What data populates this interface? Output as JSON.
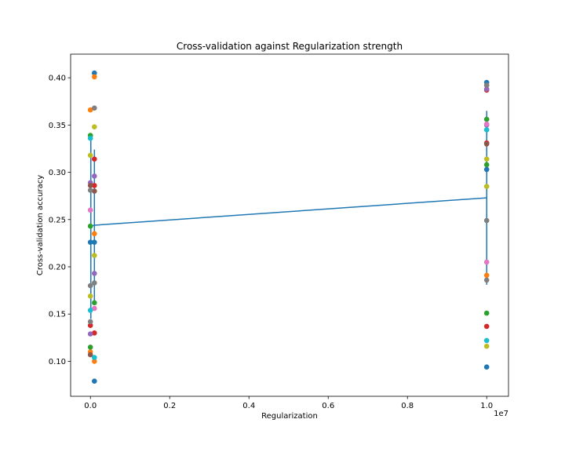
{
  "chart_data": {
    "type": "scatter",
    "title": "Cross-validation against Regularization strength",
    "xlabel": "Regularization",
    "ylabel": "Cross-validation accuracy",
    "x_offset_text": "1e7",
    "xlim": [
      -0.05,
      1.055
    ],
    "ylim": [
      0.063,
      0.425
    ],
    "xticks": [
      0.0,
      0.2,
      0.4,
      0.6,
      0.8,
      1.0
    ],
    "xtick_labels": [
      "0.0",
      "0.2",
      "0.4",
      "0.6",
      "0.8",
      "1.0"
    ],
    "yticks": [
      0.1,
      0.15,
      0.2,
      0.25,
      0.3,
      0.35,
      0.4
    ],
    "ytick_labels": [
      "0.10",
      "0.15",
      "0.20",
      "0.25",
      "0.30",
      "0.35",
      "0.40"
    ],
    "grid": false,
    "mean_line": {
      "color": "#1f77b4",
      "x": [
        0.001,
        0.01,
        1.0
      ],
      "y": [
        0.243,
        0.244,
        0.273
      ],
      "error": [
        0.098,
        0.08,
        0.092
      ]
    },
    "series": [
      {
        "color": "#1f77b4",
        "points": [
          [
            0.0,
            0.226
          ],
          [
            0.01,
            0.405
          ],
          [
            0.01,
            0.079
          ],
          [
            0.01,
            0.226
          ],
          [
            1.0,
            0.395
          ],
          [
            1.0,
            0.303
          ],
          [
            1.0,
            0.094
          ]
        ]
      },
      {
        "color": "#ff7f0e",
        "points": [
          [
            0.0,
            0.366
          ],
          [
            0.0,
            0.11
          ],
          [
            0.01,
            0.401
          ],
          [
            0.01,
            0.235
          ],
          [
            0.01,
            0.1
          ],
          [
            1.0,
            0.392
          ],
          [
            1.0,
            0.191
          ]
        ]
      },
      {
        "color": "#2ca02c",
        "points": [
          [
            0.0,
            0.339
          ],
          [
            0.0,
            0.243
          ],
          [
            0.0,
            0.115
          ],
          [
            0.01,
            0.162
          ],
          [
            1.0,
            0.356
          ],
          [
            1.0,
            0.308
          ],
          [
            1.0,
            0.151
          ]
        ]
      },
      {
        "color": "#d62728",
        "points": [
          [
            0.0,
            0.138
          ],
          [
            0.01,
            0.314
          ],
          [
            0.01,
            0.286
          ],
          [
            0.01,
            0.13
          ],
          [
            1.0,
            0.387
          ],
          [
            1.0,
            0.331
          ],
          [
            1.0,
            0.137
          ]
        ]
      },
      {
        "color": "#9467bd",
        "points": [
          [
            0.0,
            0.129
          ],
          [
            0.0,
            0.289
          ],
          [
            0.01,
            0.296
          ],
          [
            0.01,
            0.193
          ],
          [
            1.0,
            0.388
          ],
          [
            1.0,
            0.35
          ]
        ]
      },
      {
        "color": "#8c564b",
        "points": [
          [
            0.0,
            0.286
          ],
          [
            0.0,
            0.107
          ],
          [
            0.01,
            0.28
          ],
          [
            1.0,
            0.33
          ]
        ]
      },
      {
        "color": "#e377c2",
        "points": [
          [
            0.0,
            0.26
          ],
          [
            0.01,
            0.156
          ],
          [
            1.0,
            0.205
          ],
          [
            1.0,
            0.351
          ]
        ]
      },
      {
        "color": "#7f7f7f",
        "points": [
          [
            0.0,
            0.281
          ],
          [
            0.0,
            0.18
          ],
          [
            0.0,
            0.142
          ],
          [
            0.01,
            0.368
          ],
          [
            0.01,
            0.183
          ],
          [
            1.0,
            0.249
          ],
          [
            1.0,
            0.186
          ],
          [
            1.0,
            0.392
          ]
        ]
      },
      {
        "color": "#bcbd22",
        "points": [
          [
            0.0,
            0.318
          ],
          [
            0.0,
            0.169
          ],
          [
            0.01,
            0.348
          ],
          [
            0.01,
            0.212
          ],
          [
            1.0,
            0.314
          ],
          [
            1.0,
            0.285
          ],
          [
            1.0,
            0.116
          ]
        ]
      },
      {
        "color": "#17becf",
        "points": [
          [
            0.0,
            0.336
          ],
          [
            0.0,
            0.154
          ],
          [
            0.01,
            0.104
          ],
          [
            1.0,
            0.345
          ],
          [
            1.0,
            0.122
          ]
        ]
      }
    ]
  }
}
